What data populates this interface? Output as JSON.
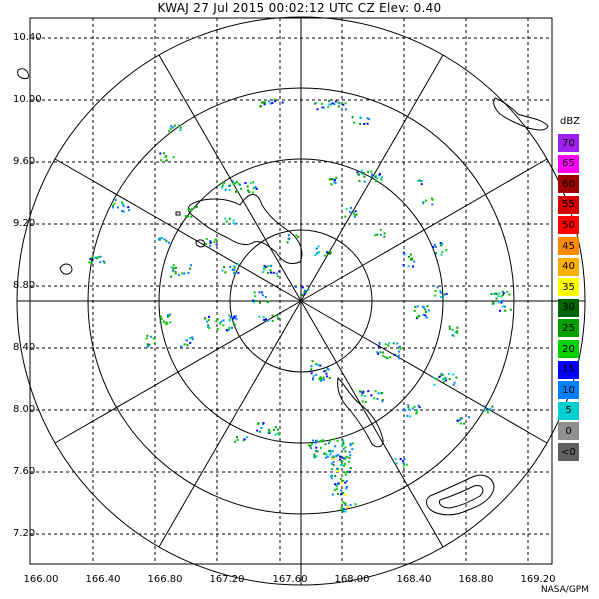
{
  "header": {
    "title": "KWAJ  27 Jul 2015 00:02:12 UTC   CZ   Elev: 0.40"
  },
  "axes": {
    "x_ticks": [
      "166.00",
      "166.40",
      "166.80",
      "167.20",
      "167.60",
      "168.00",
      "168.40",
      "168.80",
      "169.20"
    ],
    "y_ticks": [
      "10.40",
      "10.00",
      "9.60",
      "9.20",
      "8.80",
      "8.40",
      "8.00",
      "7.60",
      "7.20"
    ]
  },
  "legend": {
    "title": "dBZ",
    "bins": [
      {
        "label": "70",
        "color": "#a020f0"
      },
      {
        "label": "65",
        "color": "#ff00ff"
      },
      {
        "label": "60",
        "color": "#a00000"
      },
      {
        "label": "55",
        "color": "#d00000"
      },
      {
        "label": "50",
        "color": "#ff0000"
      },
      {
        "label": "45",
        "color": "#ff8c00"
      },
      {
        "label": "40",
        "color": "#ffb000"
      },
      {
        "label": "35",
        "color": "#ffff00"
      },
      {
        "label": "30",
        "color": "#006400"
      },
      {
        "label": "25",
        "color": "#00a000"
      },
      {
        "label": "20",
        "color": "#00d000"
      },
      {
        "label": "15",
        "color": "#0000ff"
      },
      {
        "label": "10",
        "color": "#0080ff"
      },
      {
        "label": "5",
        "color": "#00d0d0"
      },
      {
        "label": "0",
        "color": "#909090"
      },
      {
        "label": "<0",
        "color": "#606060"
      }
    ]
  },
  "footer": {
    "credit": "NASA/GPM"
  }
}
